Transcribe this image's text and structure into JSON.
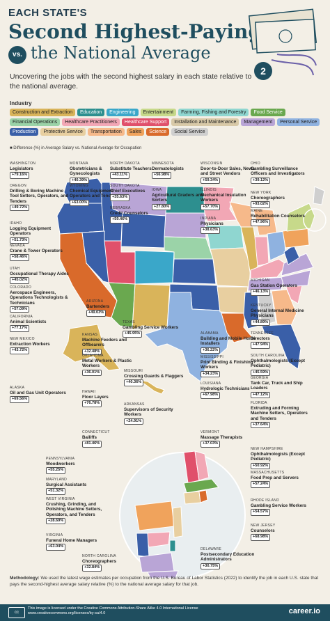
{
  "header": {
    "line1": "EACH STATE'S",
    "line2": "Second Highest-Paying Job",
    "vs": "vs.",
    "line3": "the National Average",
    "subtitle": "Uncovering the jobs with the second highest salary in each state relative to the national average.",
    "badge": "2"
  },
  "industry": {
    "title": "Industry",
    "items": [
      {
        "label": "Construction and Extraction",
        "color": "#d9b45a"
      },
      {
        "label": "Education",
        "color": "#2d8f8f"
      },
      {
        "label": "Engineering",
        "color": "#3aa7c9"
      },
      {
        "label": "Entertainment",
        "color": "#c7d98a"
      },
      {
        "label": "Farming, Fishing and Forestry",
        "color": "#8fd6d0"
      },
      {
        "label": "Food Service",
        "color": "#6aa84f"
      },
      {
        "label": "Financial Operations",
        "color": "#9bd3a8"
      },
      {
        "label": "Healthcare Practitioners",
        "color": "#f2a7b5"
      },
      {
        "label": "Healthcare Support",
        "color": "#e0506b"
      },
      {
        "label": "Installation and Maintenance",
        "color": "#d8c9a8"
      },
      {
        "label": "Management",
        "color": "#b9a5d6"
      },
      {
        "label": "Personal Service",
        "color": "#8fb2e0"
      },
      {
        "label": "Production",
        "color": "#3a5fa8"
      },
      {
        "label": "Protective Service",
        "color": "#e8cfa0"
      },
      {
        "label": "Transportation",
        "color": "#f6b98a"
      },
      {
        "label": "Sales",
        "color": "#f0a35c"
      },
      {
        "label": "Science",
        "color": "#d96a2b"
      },
      {
        "label": "Social Service",
        "color": "#cfcfcf"
      }
    ]
  },
  "legend_note": "Difference (%) in Average Salary vs. National Average for Occupation",
  "states": [
    {
      "state": "WASHINGTON",
      "job": "Legislators",
      "value": "+79.16%"
    },
    {
      "state": "OREGON",
      "job": "Drilling & Boring Machine Tool Setters, Operators, and Tenders",
      "value": "+49.72%"
    },
    {
      "state": "IDAHO",
      "job": "Logging Equipment Operators",
      "value": "+51.73%"
    },
    {
      "state": "NEVADA",
      "job": "Crane & Tower Operators",
      "value": "+58.46%"
    },
    {
      "state": "UTAH",
      "job": "Occupational Therapy Aides",
      "value": "+45.02%"
    },
    {
      "state": "COLORADO",
      "job": "Aerospace Engineers, Operations Technologists & Technicians",
      "value": "+57.09%"
    },
    {
      "state": "CALIFORNIA",
      "job": "Animal Scientists",
      "value": "+77.17%"
    },
    {
      "state": "NEW MEXICO",
      "job": "Extraction Workers",
      "value": "+43.72%"
    },
    {
      "state": "ALASKA",
      "job": "Oil and Gas Unit Operators",
      "value": "+69.56%"
    },
    {
      "state": "MONTANA",
      "job": "Obstetricians & Gynecologists",
      "value": "+40.39%"
    },
    {
      "state": "WYOMING",
      "job": "Chemical Equipment Operators and Tenders",
      "value": "+63.00%"
    },
    {
      "state": "NORTH DAKOTA",
      "job": "Substitute Teachers",
      "value": "+43.11%"
    },
    {
      "state": "SOUTH DAKOTA",
      "job": "Chief Executives",
      "value": "+35.63%"
    },
    {
      "state": "NEBRASKA",
      "job": "Credit Counselors",
      "value": "+59.46%"
    },
    {
      "state": "MINNESOTA",
      "job": "Dermatologists",
      "value": "+56.98%"
    },
    {
      "state": "IOWA",
      "job": "Agricultural Graders and Sorters",
      "value": "+27.80%"
    },
    {
      "state": "WISCONSIN",
      "job": "Door-to-Door Sales, News and Street Vendors",
      "value": "+59.34%"
    },
    {
      "state": "ILLINOIS",
      "job": "Mechanical Insulation Workers",
      "value": "+57.70%"
    },
    {
      "state": "INDIANA",
      "job": "Physicians",
      "value": "+38.63%"
    },
    {
      "state": "OHIO",
      "job": "Gambling Surveillance Officers and Investigators",
      "value": "+39.12%"
    },
    {
      "state": "NEW YORK",
      "job": "Choreographers",
      "value": "+93.02%"
    },
    {
      "state": "MAINE",
      "job": "Rehabilitation Counselors",
      "value": "+47.96%"
    },
    {
      "state": "ARIZONA",
      "job": "Bartenders",
      "value": "+49.03%"
    },
    {
      "state": "TEXAS",
      "job": "Gambling Service Workers",
      "value": "+45.95%"
    },
    {
      "state": "KANSAS",
      "job": "Machine Feeders and Offbearers",
      "value": "+32.48%"
    },
    {
      "state": "OKLAHOMA",
      "job": "Metal Workers & Plastic Workers",
      "value": "+36.01%"
    },
    {
      "state": "MISSOURI",
      "job": "Crossing Guards & Flaggers",
      "value": "+40.36%"
    },
    {
      "state": "ARKANSAS",
      "job": "Supervisors of Security Workers",
      "value": "+24.91%"
    },
    {
      "state": "HAWAII",
      "job": "Floor Layers",
      "value": "+76.78%"
    },
    {
      "state": "ALABAMA",
      "job": "Building and Mobile Home Installers",
      "value": "+36.22%"
    },
    {
      "state": "MISSISSIPPI",
      "job": "Print Binding & Finishing Workers",
      "value": "+34.23%"
    },
    {
      "state": "LOUISIANA",
      "job": "Hydrologic Technicians",
      "value": "+67.98%"
    },
    {
      "state": "MICHIGAN",
      "job": "Gas Station Operators",
      "value": "+46.13%"
    },
    {
      "state": "KENTUCKY",
      "job": "General Internal Medicine Physicians",
      "value": "+44.89%"
    },
    {
      "state": "TENNESSEE",
      "job": "Directors",
      "value": "+47.94%"
    },
    {
      "state": "SOUTH CAROLINA",
      "job": "Ophthalmologists (Except Pediatric)",
      "value": "+45.59%"
    },
    {
      "state": "GEORGIA",
      "job": "Tank Car, Truck and Ship Loaders",
      "value": "+47.12%"
    },
    {
      "state": "FLORIDA",
      "job": "Extruding and Forming Machine Setters, Operators and Tenders",
      "value": "+37.64%"
    },
    {
      "state": "CONNECTICUT",
      "job": "Bailiffs",
      "value": "+81.46%"
    },
    {
      "state": "VERMONT",
      "job": "Massage Therapists",
      "value": "+37.03%"
    },
    {
      "state": "PENNSYLVANIA",
      "job": "Woodworkers",
      "value": "+55.25%"
    },
    {
      "state": "MARYLAND",
      "job": "Surgical Assistants",
      "value": "+51.32%"
    },
    {
      "state": "WEST VIRGINIA",
      "job": "Crushing, Grinding, and Polishing Machine Setters, Operators, and Tenders",
      "value": "+28.69%"
    },
    {
      "state": "VIRGINIA",
      "job": "Funeral Home Managers",
      "value": "+63.04%"
    },
    {
      "state": "NORTH CAROLINA",
      "job": "Choreographers",
      "value": "+32.84%"
    },
    {
      "state": "NEW HAMPSHIRE",
      "job": "Ophthalmologists (Except Pediatric)",
      "value": "+50.92%"
    },
    {
      "state": "MASSACHUSETTS",
      "job": "Food Prep and Servers",
      "value": "+57.24%"
    },
    {
      "state": "RHODE ISLAND",
      "job": "Gambling Service Workers",
      "value": "+54.57%"
    },
    {
      "state": "NEW JERSEY",
      "job": "Counselors",
      "value": "+68.98%"
    },
    {
      "state": "DELAWARE",
      "job": "Postsecondary Education Administrators",
      "value": "+30.75%"
    }
  ],
  "footer": {
    "methodology_label": "Methodology:",
    "methodology": "We used the latest wage estimates per occupation from the U.S. Bureau of Labor Statistics (2022) to identify the job in each U.S. state that pays the second-highest average salary relative (%) to the national average salary for that job.",
    "license": "This image is licensed under the Creative Commons Attribution-Share Alike 4.0 International License",
    "license_url": "www.creativecommons.org/licenses/by-sa/4.0",
    "cc": "cc",
    "brand": "career.io"
  }
}
